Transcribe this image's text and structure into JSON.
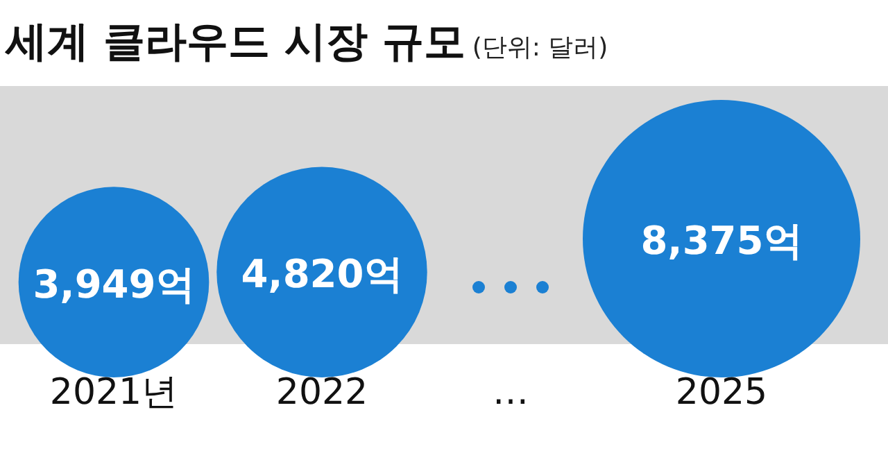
{
  "chart_data": {
    "type": "bubble",
    "title": "세계 클라우드 시장 규모",
    "subtitle": "(단위: 달러)",
    "categories": [
      "2021년",
      "2022",
      "…",
      "2025"
    ],
    "values": [
      3949,
      4820,
      null,
      8375
    ],
    "sizes": [
      0.4715,
      0.5755,
      null,
      1
    ],
    "value_labels": [
      "3,949억",
      "4,820억",
      null,
      "8,375억"
    ],
    "color": "#1b80d3"
  }
}
